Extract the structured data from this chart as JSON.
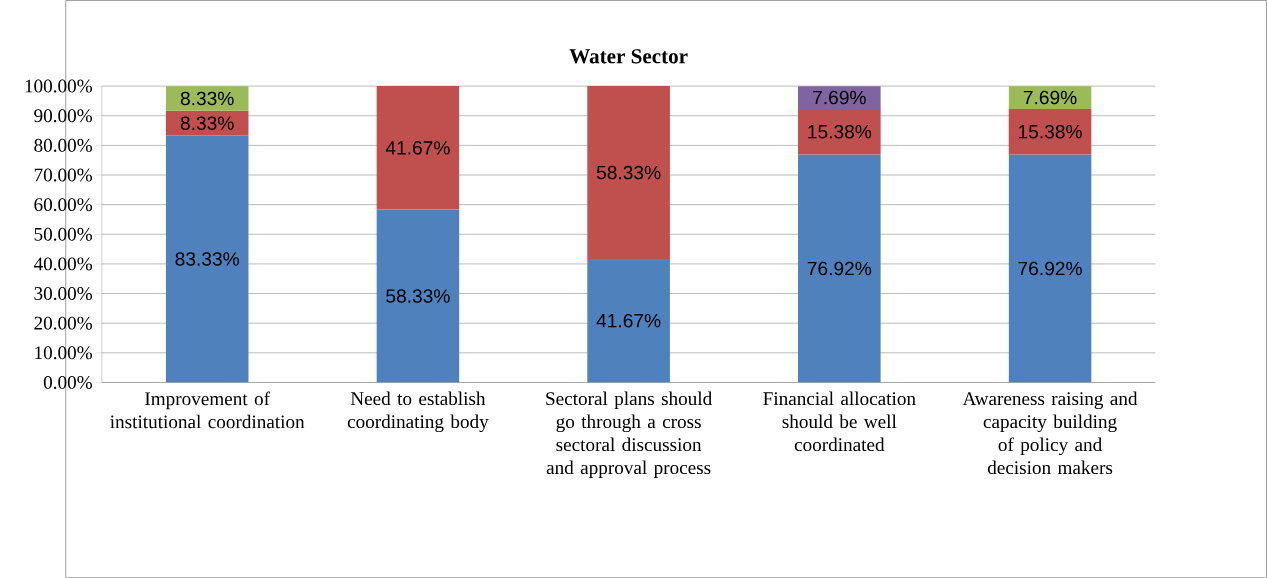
{
  "chart_data": {
    "type": "bar",
    "stacked": true,
    "title": "Water Sector",
    "categories": [
      "Improvement of institutional coordination",
      "Need to establish coordinating body",
      "Sectoral plans should go through a cross sectoral discussion and approval process",
      "Financial allocation should be well coordinated",
      "Awareness raising and capacity building of policy and decision makers"
    ],
    "series": [
      {
        "color": "#4f81bd",
        "values": [
          83.33,
          58.33,
          41.67,
          76.92,
          76.92
        ],
        "value_labels": [
          "83.33%",
          "58.33%",
          "41.67%",
          "76.92%",
          "76.92%"
        ]
      },
      {
        "color": "#c0504d",
        "values": [
          8.33,
          41.67,
          58.33,
          15.38,
          15.38
        ],
        "value_labels": [
          "8.33%",
          "41.67%",
          "58.33%",
          "15.38%",
          "15.38%"
        ]
      },
      {
        "color": "#9bbb59",
        "values": [
          8.33,
          null,
          null,
          null,
          7.69
        ],
        "value_labels": [
          "8.33%",
          null,
          null,
          null,
          "7.69%"
        ]
      },
      {
        "color": "#8064a2",
        "values": [
          null,
          null,
          null,
          7.69,
          null
        ],
        "value_labels": [
          null,
          null,
          null,
          "7.69%",
          null
        ]
      }
    ],
    "ylim": [
      0,
      100
    ],
    "yticks": [
      {
        "value": 0,
        "label": "0.00%"
      },
      {
        "value": 10,
        "label": "10.00%"
      },
      {
        "value": 20,
        "label": "20.00%"
      },
      {
        "value": 30,
        "label": "30.00%"
      },
      {
        "value": 40,
        "label": "40.00%"
      },
      {
        "value": 50,
        "label": "50.00%"
      },
      {
        "value": 60,
        "label": "60.00%"
      },
      {
        "value": 70,
        "label": "70.00%"
      },
      {
        "value": 80,
        "label": "80.00%"
      },
      {
        "value": 90,
        "label": "90.00%"
      },
      {
        "value": 100,
        "label": "100.00%"
      }
    ],
    "grid": "y"
  }
}
